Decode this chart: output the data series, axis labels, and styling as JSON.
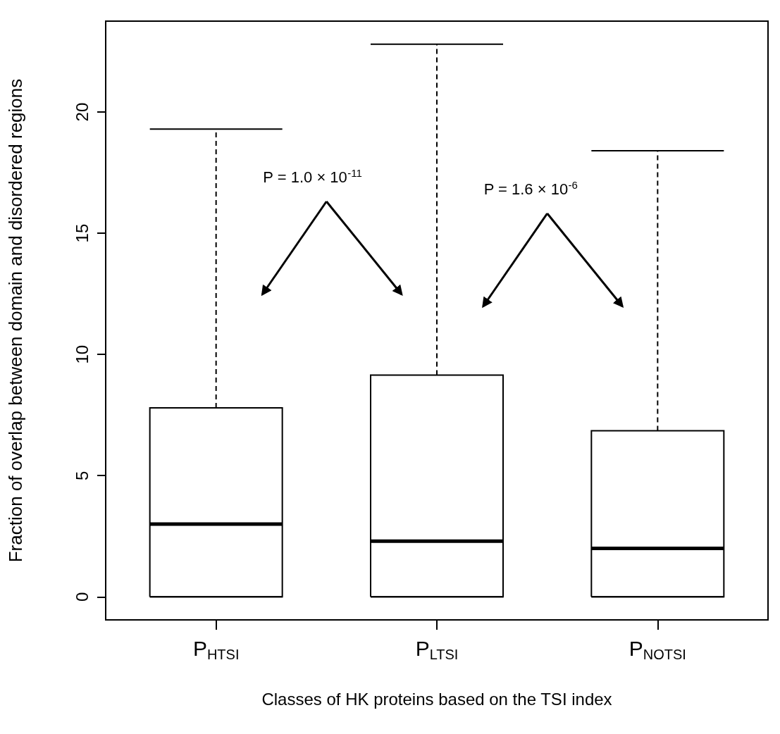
{
  "chart_data": {
    "type": "box",
    "xlabel": "Classes of HK proteins based on the TSI index",
    "ylabel": "Fraction of overlap between domain and disordered regions",
    "categories": [
      "P$_{HTSI}$",
      "P$_{LTSI}$",
      "P$_{NOTSI}$"
    ],
    "boxes": [
      {
        "low": 0,
        "q1": 0,
        "median": 3.0,
        "q3": 7.8,
        "high": 19.3
      },
      {
        "low": 0,
        "q1": 0,
        "median": 2.3,
        "q3": 9.15,
        "high": 22.8
      },
      {
        "low": 0,
        "q1": 0,
        "median": 2.0,
        "q3": 6.85,
        "high": 18.4
      }
    ],
    "color": "#000000",
    "ylim": [
      -0.95,
      23.75
    ],
    "yticks": [
      0,
      5,
      10,
      15,
      20
    ],
    "grid": false,
    "annotations": [
      "P = 1.0 × 10$^{-11}$",
      "P = 1.6 × 10$^{-6}$"
    ]
  }
}
